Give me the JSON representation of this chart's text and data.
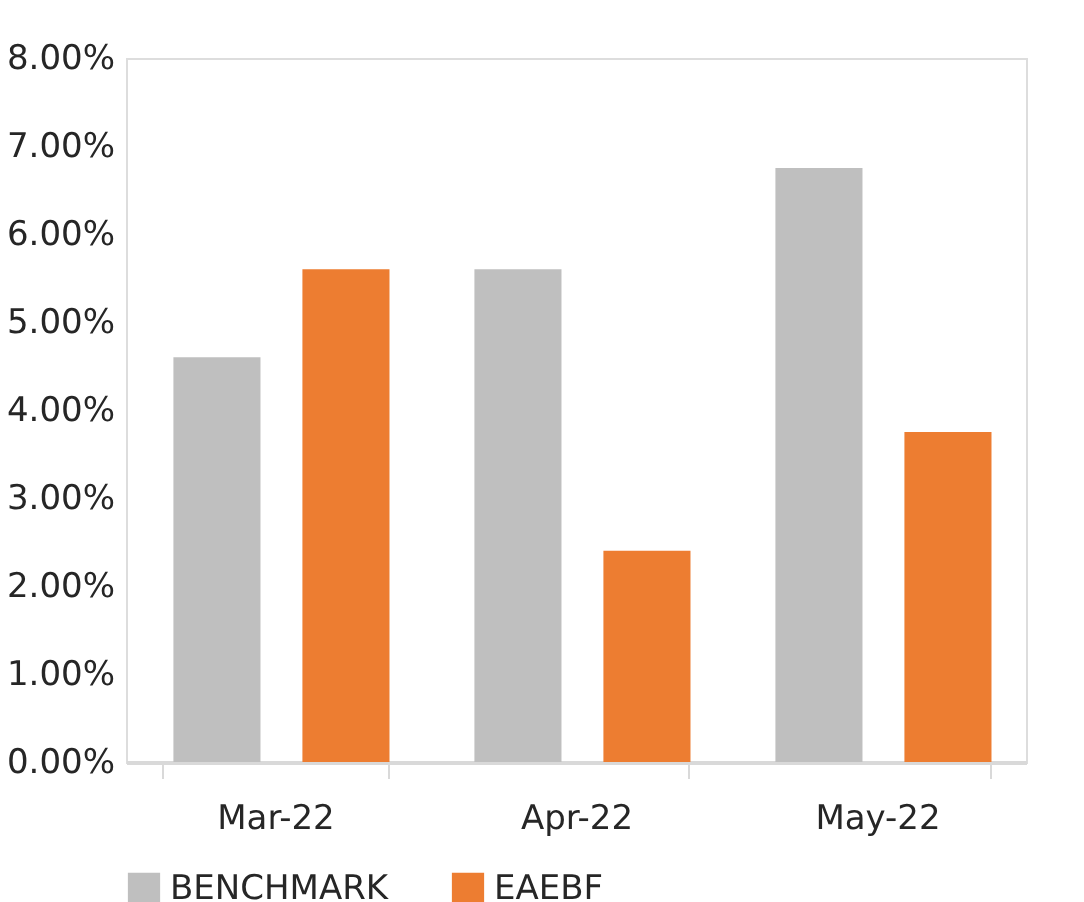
{
  "chart_data": {
    "type": "bar",
    "categories": [
      "Mar-22",
      "Apr-22",
      "May-22"
    ],
    "series": [
      {
        "name": "BENCHMARK",
        "color": "#bfbfbf",
        "values": [
          4.6,
          5.6,
          6.75
        ]
      },
      {
        "name": "EAEBF",
        "color": "#ed7d31",
        "values": [
          5.6,
          2.4,
          3.75
        ]
      }
    ],
    "ylim": [
      0,
      8
    ],
    "yticks": [
      {
        "value": 0,
        "label": "0.00%"
      },
      {
        "value": 1,
        "label": "1.00%"
      },
      {
        "value": 2,
        "label": "2.00%"
      },
      {
        "value": 3,
        "label": "3.00%"
      },
      {
        "value": 4,
        "label": "4.00%"
      },
      {
        "value": 5,
        "label": "5.00%"
      },
      {
        "value": 6,
        "label": "6.00%"
      },
      {
        "value": 7,
        "label": "7.00%"
      },
      {
        "value": 8,
        "label": "8.00%"
      }
    ],
    "grid": false,
    "legend": "bottom"
  }
}
